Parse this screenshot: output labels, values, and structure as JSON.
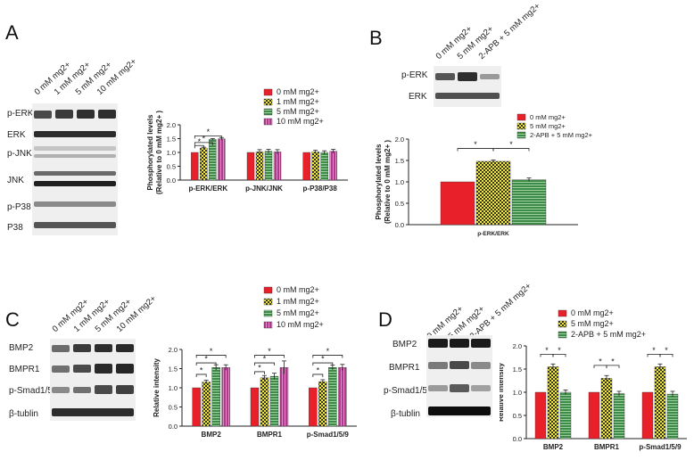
{
  "panels": {
    "A": {
      "letter": "A",
      "lanes": [
        "0 mM mg2+",
        "1 mM mg2+",
        "5 mM mg2+",
        "10 mM mg2+"
      ],
      "rows": [
        "p-ERK",
        "ERK",
        "p-JNK",
        "JNK",
        "p-P38",
        "P38"
      ]
    },
    "B": {
      "letter": "B",
      "lanes": [
        "0 mM mg2+",
        "5 mM mg2+",
        "2-APB + 5 mM mg2+"
      ],
      "rows": [
        "p-ERK",
        "ERK"
      ]
    },
    "C": {
      "letter": "C",
      "lanes": [
        "0 mM mg2+",
        "1 mM mg2+",
        "5 mM mg2+",
        "10 mM mg2+"
      ],
      "rows": [
        "BMP2",
        "BMPR1",
        "p-Smad1/5/9",
        "β-tublin"
      ]
    },
    "D": {
      "letter": "D",
      "lanes": [
        "0 mM mg2+",
        "5 mM mg2+",
        "2-APB + 5 mM mg2+"
      ],
      "rows": [
        "BMP2",
        "BMPR1",
        "p-Smad1/5/9",
        "β-tublin"
      ]
    }
  },
  "chart_data": [
    {
      "id": "A",
      "type": "bar",
      "ylabel": [
        "Phosphorylated levels",
        "(Relative to 0 mM mg2+ )"
      ],
      "ylim": [
        0,
        2.0
      ],
      "yticks": [
        "0.0",
        "0.5",
        "1.0",
        "1.5",
        "2.0"
      ],
      "categories": [
        "p-ERK/ERK",
        "p-JNK/JNK",
        "p-P38/P38"
      ],
      "series": [
        {
          "name": "0 mM mg2+",
          "color": "#e8202a",
          "pattern": "solid",
          "values": [
            1.0,
            1.0,
            1.0
          ],
          "err": [
            0.0,
            0.0,
            0.0
          ]
        },
        {
          "name": "1 mM mg2+",
          "color": "#f2e93a",
          "pattern": "check",
          "values": [
            1.16,
            1.02,
            1.02
          ],
          "err": [
            0.03,
            0.08,
            0.06
          ]
        },
        {
          "name": "5 mM mg2+",
          "color": "#3e8a47",
          "pattern": "hstripe",
          "values": [
            1.47,
            1.04,
            1.0
          ],
          "err": [
            0.03,
            0.07,
            0.06
          ]
        },
        {
          "name": "10 mM mg2+",
          "color": "#b03a8a",
          "pattern": "vstripe",
          "values": [
            1.49,
            1.02,
            1.04
          ],
          "err": [
            0.05,
            0.08,
            0.07
          ]
        }
      ],
      "significance": [
        {
          "text": "*"
        },
        {
          "text": "*"
        },
        {
          "text": "*"
        }
      ]
    },
    {
      "id": "B",
      "type": "bar",
      "ylabel": [
        "Phosphorylated levels",
        "(Relative to 0 mM mg2+ )"
      ],
      "ylim": [
        0,
        2.0
      ],
      "yticks": [
        "0.0",
        "0.5",
        "1.0",
        "1.5",
        "2.0"
      ],
      "categories": [
        "p-ERK/ERK"
      ],
      "series": [
        {
          "name": "0 mM mg2+",
          "color": "#e8202a",
          "pattern": "solid",
          "values": [
            1.0
          ],
          "err": [
            0.0
          ]
        },
        {
          "name": "5 mM mg2+",
          "color": "#f2e93a",
          "pattern": "check",
          "values": [
            1.48
          ],
          "err": [
            0.03
          ]
        },
        {
          "name": "2-APB + 5 mM mg2+",
          "color": "#3e8a47",
          "pattern": "hstripe",
          "values": [
            1.05
          ],
          "err": [
            0.04
          ]
        }
      ],
      "significance": [
        {
          "text": "*"
        },
        {
          "text": "*"
        }
      ]
    },
    {
      "id": "C",
      "type": "bar",
      "ylabel": [
        "Relative intensity"
      ],
      "ylim": [
        0,
        2.0
      ],
      "yticks": [
        "0.0",
        "0.5",
        "1.0",
        "1.5",
        "2.0"
      ],
      "categories": [
        "BMP2",
        "BMPR1",
        "p-Smad1/5/9"
      ],
      "series": [
        {
          "name": "0 mM mg2+",
          "color": "#e8202a",
          "pattern": "solid",
          "values": [
            1.0,
            1.0,
            1.0
          ],
          "err": [
            0.0,
            0.0,
            0.0
          ]
        },
        {
          "name": "1 mM mg2+",
          "color": "#f2e93a",
          "pattern": "check",
          "values": [
            1.15,
            1.26,
            1.16
          ],
          "err": [
            0.05,
            0.06,
            0.05
          ]
        },
        {
          "name": "5 mM mg2+",
          "color": "#3e8a47",
          "pattern": "hstripe",
          "values": [
            1.53,
            1.3,
            1.53
          ],
          "err": [
            0.07,
            0.08,
            0.06
          ]
        },
        {
          "name": "10 mM mg2+",
          "color": "#b03a8a",
          "pattern": "vstripe",
          "values": [
            1.53,
            1.53,
            1.53
          ],
          "err": [
            0.07,
            0.17,
            0.08
          ]
        }
      ],
      "significance": [
        {
          "text": "*"
        },
        {
          "text": "*"
        },
        {
          "text": "*"
        },
        {
          "text": "*"
        },
        {
          "text": "*"
        },
        {
          "text": "*"
        },
        {
          "text": "*"
        },
        {
          "text": "*"
        },
        {
          "text": "*"
        }
      ]
    },
    {
      "id": "D",
      "type": "bar",
      "ylabel": [
        "Relative intensity"
      ],
      "ylim": [
        0,
        2.0
      ],
      "yticks": [
        "0.0",
        "0.5",
        "1.0",
        "1.5",
        "2.0"
      ],
      "categories": [
        "BMP2",
        "BMPR1",
        "p-Smad1/5/9"
      ],
      "series": [
        {
          "name": "0 mM mg2+",
          "color": "#e8202a",
          "pattern": "solid",
          "values": [
            1.0,
            1.0,
            1.0
          ],
          "err": [
            0.0,
            0.0,
            0.0
          ]
        },
        {
          "name": "5 mM mg2+",
          "color": "#f2e93a",
          "pattern": "check",
          "values": [
            1.55,
            1.3,
            1.55
          ],
          "err": [
            0.06,
            0.06,
            0.06
          ]
        },
        {
          "name": "2-APB + 5 mM mg2+",
          "color": "#3e8a47",
          "pattern": "hstripe",
          "values": [
            1.0,
            0.97,
            0.96
          ],
          "err": [
            0.05,
            0.05,
            0.06
          ]
        }
      ],
      "significance": [
        {
          "text": "*"
        },
        {
          "text": "*"
        },
        {
          "text": "*"
        },
        {
          "text": "*"
        },
        {
          "text": "*"
        },
        {
          "text": "*"
        }
      ]
    }
  ]
}
